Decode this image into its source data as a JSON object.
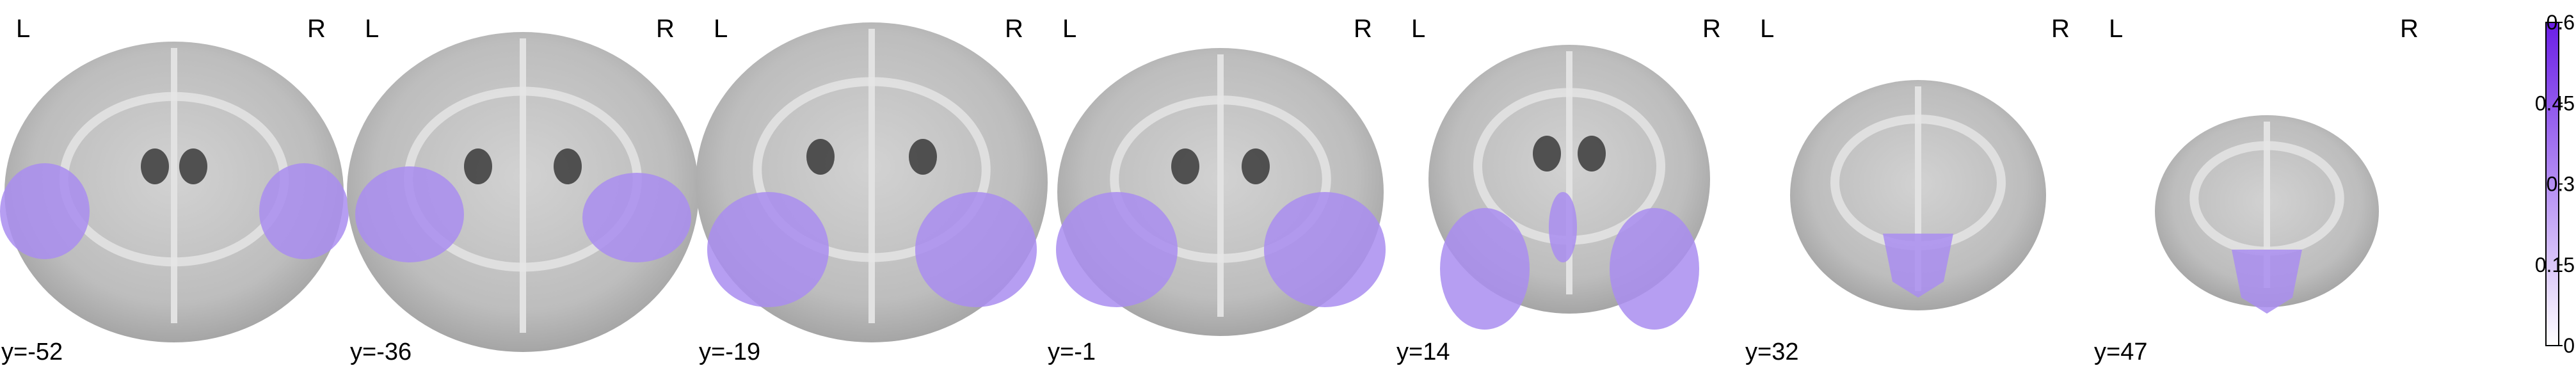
{
  "colors": {
    "background": "#ffffff",
    "anatomy_light": "#c9c9c9",
    "anatomy_mid": "#a9a9a9",
    "anatomy_dark": "#3a3a3a",
    "overlay": "#a98df0",
    "colorbar_bottom": "#ffffff",
    "colorbar_top": "#6a1ee6"
  },
  "orientation_labels": {
    "left": "L",
    "right": "R"
  },
  "slices": [
    {
      "coord": "y=-52",
      "overlay": "cerebellar-lateral"
    },
    {
      "coord": "y=-36",
      "overlay": "temporal-lateral"
    },
    {
      "coord": "y=-19",
      "overlay": "temporal-inferior"
    },
    {
      "coord": "y=-1",
      "overlay": "temporal-inferior"
    },
    {
      "coord": "y=14",
      "overlay": "temporal-pole-and-medial"
    },
    {
      "coord": "y=32",
      "overlay": "medial-frontal"
    },
    {
      "coord": "y=47",
      "overlay": "medial-frontal"
    }
  ],
  "colorbar": {
    "ticks": [
      "0.6",
      "0.45",
      "0.3",
      "0.15",
      "0"
    ]
  }
}
